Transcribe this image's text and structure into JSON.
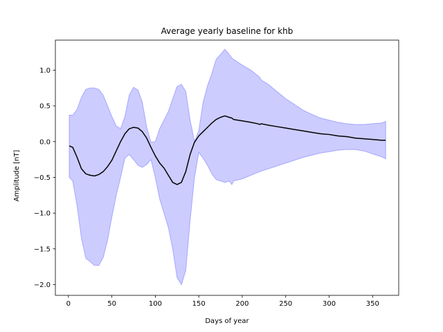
{
  "chart_data": {
    "type": "line",
    "title": "Average yearly baseline for khb",
    "xlabel": "Days of year",
    "ylabel": "Amplitude [nT]",
    "xlim": [
      -15,
      380
    ],
    "ylim": [
      -2.15,
      1.42
    ],
    "xticks": [
      0,
      50,
      100,
      150,
      200,
      250,
      300,
      350
    ],
    "yticks": [
      -2.0,
      -1.5,
      -1.0,
      -0.5,
      0.0,
      0.5,
      1.0
    ],
    "ytick_labels": [
      "−2.0",
      "−1.5",
      "−1.0",
      "−0.5",
      "0.0",
      "0.5",
      "1.0"
    ],
    "grid": false,
    "colors": {
      "line": "#000000",
      "band_fill": "#8080ff",
      "band_edge": "#a6a6ff"
    },
    "series": [
      {
        "x": [
          1,
          5,
          10,
          15,
          20,
          25,
          30,
          35,
          40,
          45,
          50,
          55,
          60,
          65,
          70,
          75,
          80,
          85,
          90,
          95,
          100,
          105,
          110,
          115,
          120,
          125,
          130,
          135,
          140,
          145,
          150,
          155,
          160,
          165,
          170,
          175,
          180,
          185,
          188,
          190,
          200,
          210,
          218,
          220,
          222,
          230,
          240,
          250,
          260,
          270,
          280,
          290,
          300,
          310,
          320,
          330,
          340,
          350,
          360,
          365
        ],
        "values": [
          -0.06,
          -0.08,
          -0.22,
          -0.38,
          -0.45,
          -0.47,
          -0.48,
          -0.46,
          -0.42,
          -0.35,
          -0.26,
          -0.13,
          0.0,
          0.11,
          0.18,
          0.2,
          0.19,
          0.14,
          0.05,
          -0.08,
          -0.2,
          -0.3,
          -0.37,
          -0.47,
          -0.57,
          -0.6,
          -0.57,
          -0.42,
          -0.18,
          -0.01,
          0.08,
          0.14,
          0.2,
          0.26,
          0.31,
          0.34,
          0.36,
          0.34,
          0.33,
          0.31,
          0.29,
          0.27,
          0.25,
          0.24,
          0.25,
          0.23,
          0.21,
          0.19,
          0.17,
          0.15,
          0.13,
          0.11,
          0.1,
          0.08,
          0.07,
          0.05,
          0.04,
          0.03,
          0.02,
          0.02
        ]
      }
    ],
    "band": {
      "x": [
        1,
        5,
        10,
        15,
        20,
        25,
        30,
        35,
        40,
        45,
        50,
        55,
        60,
        65,
        70,
        75,
        80,
        85,
        90,
        95,
        100,
        105,
        110,
        115,
        120,
        125,
        130,
        135,
        140,
        145,
        150,
        155,
        160,
        165,
        170,
        175,
        180,
        185,
        188,
        190,
        200,
        210,
        218,
        220,
        222,
        230,
        240,
        250,
        260,
        270,
        280,
        290,
        300,
        310,
        320,
        330,
        340,
        350,
        360,
        365
      ],
      "upper": [
        0.37,
        0.37,
        0.45,
        0.62,
        0.73,
        0.75,
        0.75,
        0.73,
        0.65,
        0.5,
        0.35,
        0.22,
        0.18,
        0.35,
        0.65,
        0.76,
        0.72,
        0.55,
        0.2,
        -0.01,
        0.0,
        0.18,
        0.3,
        0.42,
        0.6,
        0.77,
        0.8,
        0.7,
        0.3,
        0.0,
        0.15,
        0.55,
        0.78,
        0.95,
        1.15,
        1.22,
        1.29,
        1.22,
        1.17,
        1.15,
        1.07,
        1.0,
        0.92,
        0.9,
        0.86,
        0.8,
        0.7,
        0.6,
        0.52,
        0.44,
        0.38,
        0.33,
        0.3,
        0.27,
        0.25,
        0.24,
        0.24,
        0.25,
        0.26,
        0.28
      ],
      "lower": [
        -0.5,
        -0.55,
        -0.9,
        -1.35,
        -1.63,
        -1.68,
        -1.73,
        -1.73,
        -1.62,
        -1.38,
        -1.05,
        -0.75,
        -0.5,
        -0.23,
        -0.18,
        -0.25,
        -0.33,
        -0.36,
        -0.32,
        -0.25,
        -0.5,
        -0.8,
        -1.0,
        -1.2,
        -1.5,
        -1.9,
        -2.0,
        -1.8,
        -1.1,
        -0.5,
        -0.15,
        -0.23,
        -0.33,
        -0.45,
        -0.53,
        -0.55,
        -0.57,
        -0.55,
        -0.6,
        -0.55,
        -0.52,
        -0.47,
        -0.43,
        -0.42,
        -0.41,
        -0.38,
        -0.34,
        -0.3,
        -0.26,
        -0.22,
        -0.19,
        -0.16,
        -0.14,
        -0.12,
        -0.11,
        -0.11,
        -0.13,
        -0.17,
        -0.21,
        -0.24
      ]
    }
  }
}
